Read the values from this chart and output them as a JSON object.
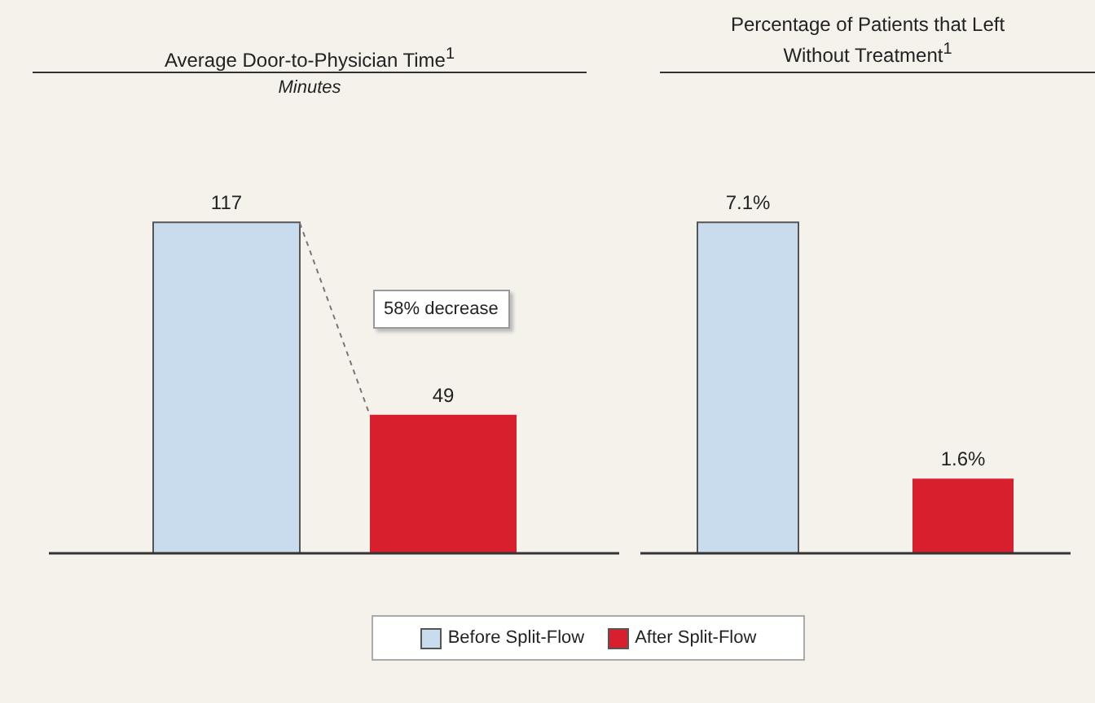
{
  "chart_data": [
    {
      "type": "bar",
      "title": "Average Door-to-Physician Time$^{1}$",
      "subtitle": "Minutes",
      "categories": [
        null
      ],
      "series": [
        {
          "name": "Before Split-Flow",
          "color": "#c8dcee",
          "values": [
            117
          ]
        },
        {
          "name": "After Split-Flow",
          "color": "#d71f2d",
          "values": [
            49
          ]
        }
      ],
      "data_labels": true,
      "legend": "bottom",
      "annotations": [
        "58% decrease"
      ]
    },
    {
      "type": "bar",
      "title": "Percentage of Patients that Left Without Treatment$^{1}$",
      "categories": [
        null,
        null
      ],
      "values": [
        7.1,
        1.6
      ],
      "colors": [
        "#c8dcee",
        "#d71f2d"
      ],
      "value_labels": [
        "7.1%",
        "1.6%"
      ]
    }
  ]
}
